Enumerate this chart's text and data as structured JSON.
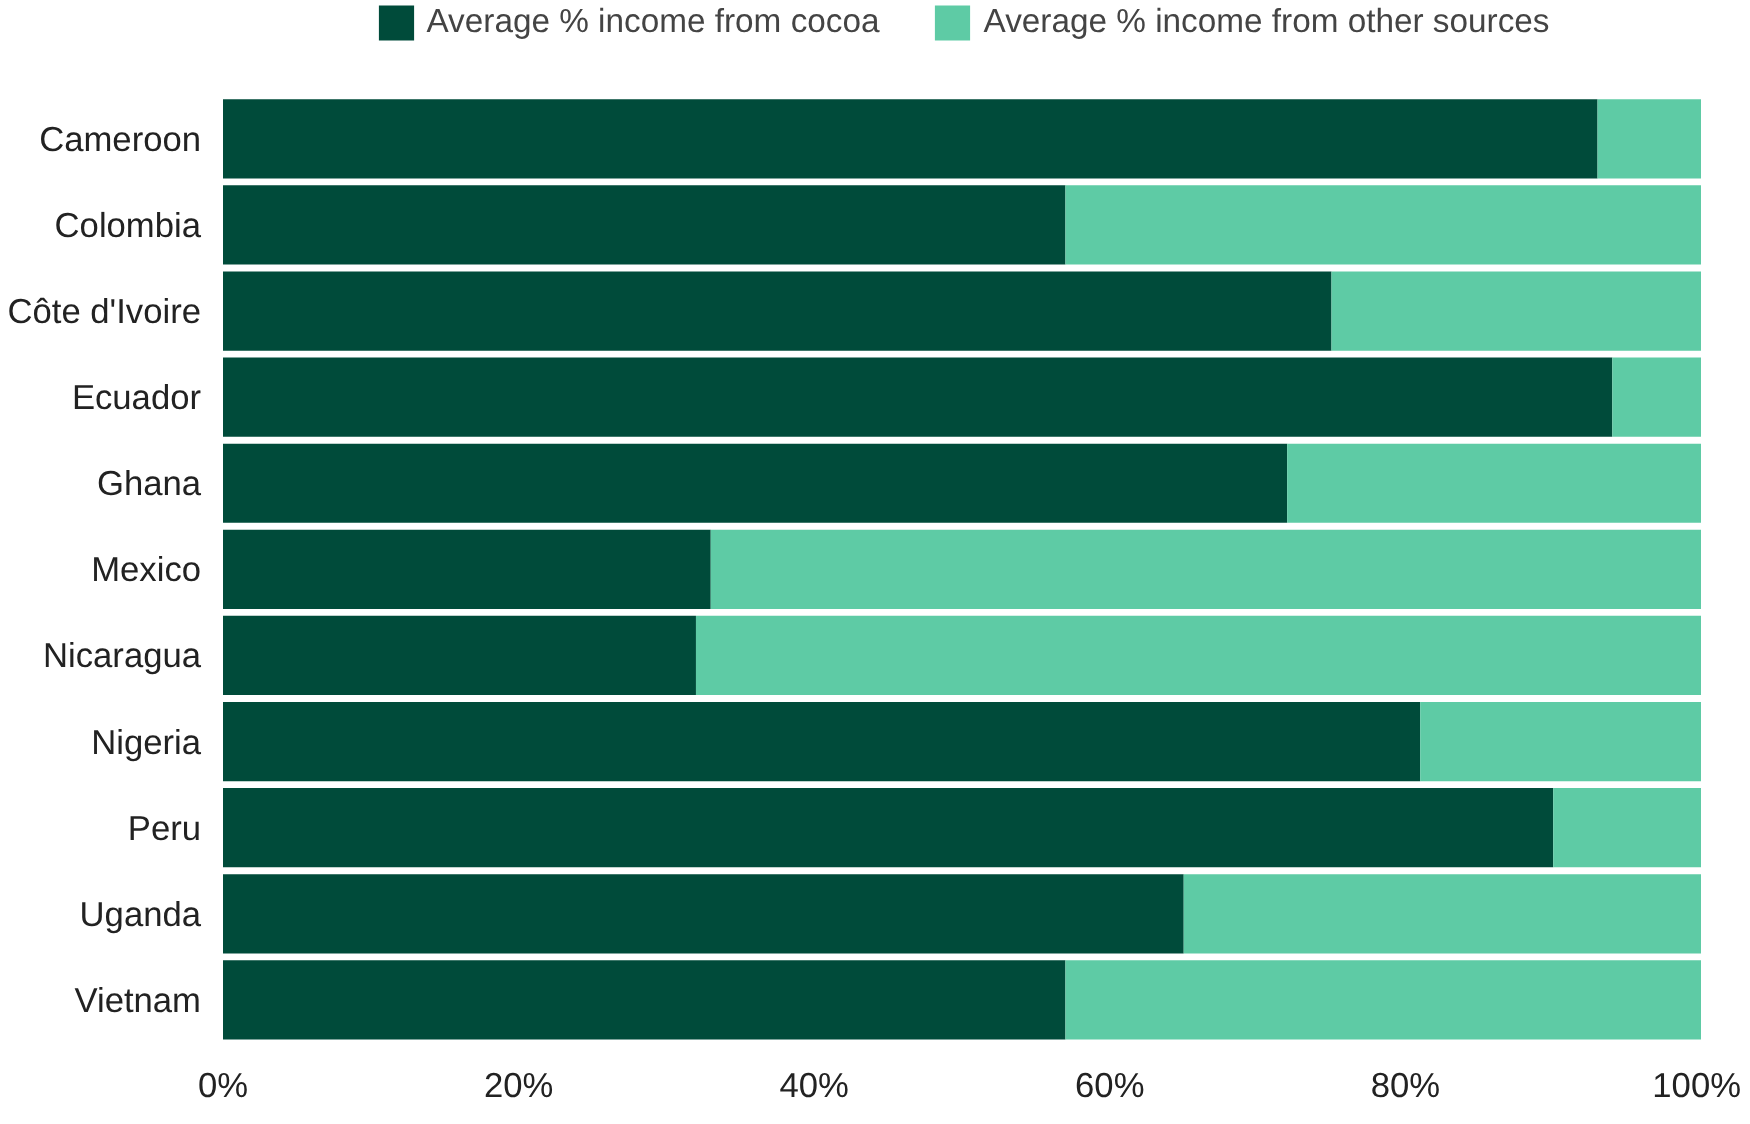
{
  "chart_data": {
    "type": "bar",
    "orientation": "horizontal",
    "stacked": true,
    "categories": [
      "Cameroon",
      "Colombia",
      "Côte d'Ivoire",
      "Ecuador",
      "Ghana",
      "Mexico",
      "Nicaragua",
      "Nigeria",
      "Peru",
      "Uganda",
      "Vietnam"
    ],
    "series": [
      {
        "name": "Average % income from cocoa",
        "color": "#004b3a",
        "values": [
          93,
          57,
          75,
          94,
          72,
          33,
          32,
          81,
          90,
          65,
          57
        ]
      },
      {
        "name": "Average % income from other sources",
        "color": "#5ecba5",
        "values": [
          7,
          43,
          25,
          6,
          28,
          67,
          68,
          19,
          10,
          35,
          43
        ]
      }
    ],
    "xlim": [
      0,
      100
    ],
    "xticks": [
      {
        "value": 0,
        "label": "0%"
      },
      {
        "value": 20,
        "label": "20%"
      },
      {
        "value": 40,
        "label": "40%"
      },
      {
        "value": 60,
        "label": "60%"
      },
      {
        "value": 80,
        "label": "80%"
      },
      {
        "value": 100,
        "label": "100%"
      }
    ],
    "grid": false,
    "legend": "top"
  }
}
